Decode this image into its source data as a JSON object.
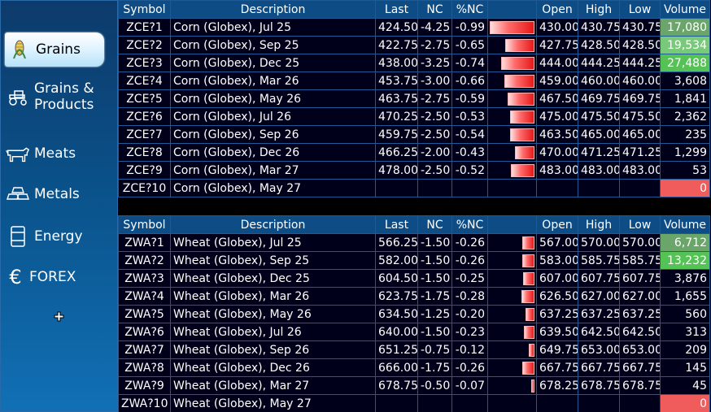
{
  "sidebar": {
    "items": [
      {
        "label": "Grains",
        "icon": "corn-icon"
      },
      {
        "label": "Grains &\nProducts",
        "icon": "tractor-icon"
      },
      {
        "label": "Meats",
        "icon": "cow-icon"
      },
      {
        "label": "Metals",
        "icon": "gold-bars-icon"
      },
      {
        "label": "Energy",
        "icon": "oil-barrel-icon"
      },
      {
        "label": "FOREX",
        "icon": "euro-icon"
      }
    ]
  },
  "columns": [
    "Symbol",
    "Description",
    "Last",
    "NC",
    "%NC",
    "",
    "Open",
    "High",
    "Low",
    "Volume"
  ],
  "colors": {
    "header": "#0e4c86",
    "cell": "#00001a",
    "grid_line": "#1f5a94",
    "bar_red": "#e61818",
    "volume_green": "#55c255",
    "volume_red": "#f05c5c"
  },
  "corn": [
    {
      "symbol": "ZCE?1",
      "desc": "Corn (Globex), Jul 25",
      "last": "424.50",
      "nc": "-4.25",
      "pnc": "-0.99",
      "open": "430.00",
      "high": "430.75",
      "low": "430.75",
      "volume": "17,080",
      "bar": 0.99
    },
    {
      "symbol": "ZCE?2",
      "desc": "Corn (Globex), Sep 25",
      "last": "422.75",
      "nc": "-2.75",
      "pnc": "-0.65",
      "open": "427.75",
      "high": "428.50",
      "low": "428.50",
      "volume": "19,534",
      "bar": 0.65
    },
    {
      "symbol": "ZCE?3",
      "desc": "Corn (Globex), Dec 25",
      "last": "438.00",
      "nc": "-3.25",
      "pnc": "-0.74",
      "open": "444.00",
      "high": "444.25",
      "low": "444.25",
      "volume": "27,488",
      "bar": 0.74
    },
    {
      "symbol": "ZCE?4",
      "desc": "Corn (Globex), Mar 26",
      "last": "453.75",
      "nc": "-3.00",
      "pnc": "-0.66",
      "open": "459.00",
      "high": "460.00",
      "low": "460.00",
      "volume": "3,608",
      "bar": 0.66
    },
    {
      "symbol": "ZCE?5",
      "desc": "Corn (Globex), May 26",
      "last": "463.75",
      "nc": "-2.75",
      "pnc": "-0.59",
      "open": "467.50",
      "high": "469.75",
      "low": "469.75",
      "volume": "1,841",
      "bar": 0.59
    },
    {
      "symbol": "ZCE?6",
      "desc": "Corn (Globex), Jul 26",
      "last": "470.25",
      "nc": "-2.50",
      "pnc": "-0.53",
      "open": "475.00",
      "high": "475.50",
      "low": "475.50",
      "volume": "2,362",
      "bar": 0.53
    },
    {
      "symbol": "ZCE?7",
      "desc": "Corn (Globex), Sep 26",
      "last": "459.75",
      "nc": "-2.50",
      "pnc": "-0.54",
      "open": "463.50",
      "high": "465.00",
      "low": "465.00",
      "volume": "235",
      "bar": 0.54
    },
    {
      "symbol": "ZCE?8",
      "desc": "Corn (Globex), Dec 26",
      "last": "466.25",
      "nc": "-2.00",
      "pnc": "-0.43",
      "open": "470.00",
      "high": "471.25",
      "low": "471.25",
      "volume": "1,299",
      "bar": 0.43
    },
    {
      "symbol": "ZCE?9",
      "desc": "Corn (Globex), Mar 27",
      "last": "478.00",
      "nc": "-2.50",
      "pnc": "-0.52",
      "open": "483.00",
      "high": "483.00",
      "low": "483.00",
      "volume": "53",
      "bar": 0.52
    },
    {
      "symbol": "ZCE?10",
      "desc": "Corn (Globex), May 27",
      "last": "",
      "nc": "",
      "pnc": "",
      "open": "",
      "high": "",
      "low": "",
      "volume": "0",
      "bar": 0
    }
  ],
  "wheat": [
    {
      "symbol": "ZWA?1",
      "desc": "Wheat (Globex), Jul 25",
      "last": "566.25",
      "nc": "-1.50",
      "pnc": "-0.26",
      "open": "567.00",
      "high": "570.00",
      "low": "570.00",
      "volume": "6,712",
      "bar": 0.26
    },
    {
      "symbol": "ZWA?2",
      "desc": "Wheat (Globex), Sep 25",
      "last": "582.00",
      "nc": "-1.50",
      "pnc": "-0.26",
      "open": "583.00",
      "high": "585.75",
      "low": "585.75",
      "volume": "13,232",
      "bar": 0.26
    },
    {
      "symbol": "ZWA?3",
      "desc": "Wheat (Globex), Dec 25",
      "last": "604.50",
      "nc": "-1.50",
      "pnc": "-0.25",
      "open": "607.00",
      "high": "607.75",
      "low": "607.75",
      "volume": "3,876",
      "bar": 0.25
    },
    {
      "symbol": "ZWA?4",
      "desc": "Wheat (Globex), Mar 26",
      "last": "623.75",
      "nc": "-1.75",
      "pnc": "-0.28",
      "open": "626.50",
      "high": "627.00",
      "low": "627.00",
      "volume": "1,655",
      "bar": 0.28
    },
    {
      "symbol": "ZWA?5",
      "desc": "Wheat (Globex), May 26",
      "last": "634.50",
      "nc": "-1.25",
      "pnc": "-0.20",
      "open": "637.25",
      "high": "637.25",
      "low": "637.25",
      "volume": "560",
      "bar": 0.2
    },
    {
      "symbol": "ZWA?6",
      "desc": "Wheat (Globex), Jul 26",
      "last": "640.00",
      "nc": "-1.50",
      "pnc": "-0.23",
      "open": "639.50",
      "high": "642.50",
      "low": "642.50",
      "volume": "313",
      "bar": 0.23
    },
    {
      "symbol": "ZWA?7",
      "desc": "Wheat (Globex), Sep 26",
      "last": "651.25",
      "nc": "-0.75",
      "pnc": "-0.12",
      "open": "649.75",
      "high": "653.00",
      "low": "653.00",
      "volume": "209",
      "bar": 0.12
    },
    {
      "symbol": "ZWA?8",
      "desc": "Wheat (Globex), Dec 26",
      "last": "666.00",
      "nc": "-1.75",
      "pnc": "-0.26",
      "open": "667.75",
      "high": "667.75",
      "low": "667.75",
      "volume": "145",
      "bar": 0.26
    },
    {
      "symbol": "ZWA?9",
      "desc": "Wheat (Globex), Mar 27",
      "last": "678.75",
      "nc": "-0.50",
      "pnc": "-0.07",
      "open": "678.25",
      "high": "678.75",
      "low": "678.75",
      "volume": "45",
      "bar": 0.07
    },
    {
      "symbol": "ZWA?10",
      "desc": "Wheat (Globex), May 27",
      "last": "",
      "nc": "",
      "pnc": "",
      "open": "",
      "high": "",
      "low": "",
      "volume": "0",
      "bar": 0
    }
  ]
}
